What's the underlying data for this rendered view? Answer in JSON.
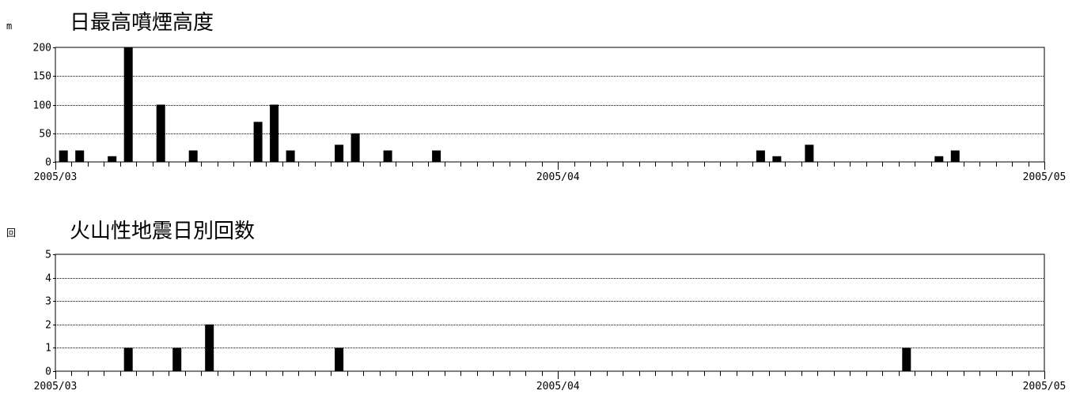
{
  "chart_data": [
    {
      "type": "bar",
      "title": "日最高噴煙高度",
      "ylabel": "m",
      "ylim": [
        0,
        200
      ],
      "yticks": [
        0,
        50,
        100,
        150,
        200
      ],
      "x_start": "2005/03/01",
      "x_end": "2005/05/01",
      "x_tick_labels": [
        "2005/03",
        "2005/04",
        "2005/05"
      ],
      "grid": true,
      "x": [
        "2005/03/01",
        "2005/03/02",
        "2005/03/04",
        "2005/03/05",
        "2005/03/07",
        "2005/03/09",
        "2005/03/13",
        "2005/03/14",
        "2005/03/15",
        "2005/03/18",
        "2005/03/19",
        "2005/03/21",
        "2005/03/24",
        "2005/04/13",
        "2005/04/14",
        "2005/04/16",
        "2005/04/24",
        "2005/04/25",
        "2005/04/27"
      ],
      "values": [
        20,
        20,
        10,
        200,
        100,
        20,
        70,
        100,
        20,
        30,
        50,
        20,
        20,
        20,
        10,
        30,
        10,
        20,
        0
      ]
    },
    {
      "type": "bar",
      "title": "火山性地震日別回数",
      "ylabel": "回",
      "ylim": [
        0,
        5
      ],
      "yticks": [
        0,
        1,
        2,
        3,
        4,
        5
      ],
      "x_start": "2005/03/01",
      "x_end": "2005/05/01",
      "x_tick_labels": [
        "2005/03",
        "2005/04",
        "2005/05"
      ],
      "grid": true,
      "x": [
        "2005/03/05",
        "2005/03/08",
        "2005/03/10",
        "2005/03/18",
        "2005/04/22"
      ],
      "values": [
        1,
        1,
        2,
        1,
        1
      ]
    }
  ]
}
